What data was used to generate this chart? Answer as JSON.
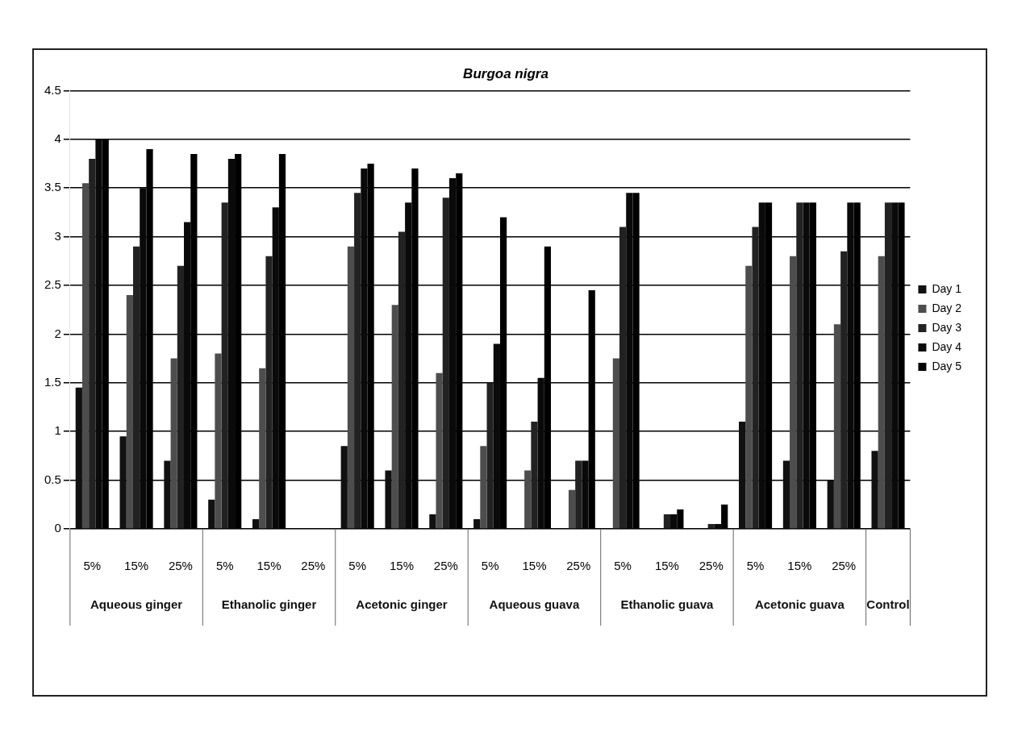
{
  "chart_data": {
    "type": "bar",
    "title": "Burgoa nigra",
    "categories": [
      "5%",
      "15%",
      "25%",
      "5%",
      "15%",
      "25%",
      "5%",
      "15%",
      "25%",
      "5%",
      "15%",
      "25%",
      "5%",
      "15%",
      "25%",
      "5%",
      "15%",
      "25%",
      null
    ],
    "annotations": [
      "Aqueous ginger",
      "Ethanolic ginger",
      "Acetonic ginger",
      "Aqueous guava",
      "Ethanolic guava",
      "Acetonic guava",
      "Control"
    ],
    "series": [
      {
        "name": "Day 1",
        "color": "#111111",
        "values": [
          1.45,
          0.95,
          0.7,
          0.3,
          0.1,
          0,
          0.85,
          0.6,
          0.15,
          0.1,
          0,
          0,
          0,
          0,
          0,
          1.1,
          0.7,
          0.5,
          0.8
        ]
      },
      {
        "name": "Day 2",
        "color": "#4d4d4d",
        "values": [
          3.55,
          2.4,
          1.75,
          1.8,
          1.65,
          0,
          2.9,
          2.3,
          1.6,
          0.85,
          0.6,
          0.4,
          1.75,
          0,
          0,
          2.7,
          2.8,
          2.1,
          2.8
        ]
      },
      {
        "name": "Day 3",
        "color": "#222222",
        "values": [
          3.8,
          2.9,
          2.7,
          3.35,
          2.8,
          0,
          3.45,
          3.05,
          3.4,
          1.5,
          1.1,
          0.7,
          3.1,
          0.15,
          0.05,
          3.1,
          3.35,
          2.85,
          3.35
        ]
      },
      {
        "name": "Day 4",
        "color": "#0a0a0a",
        "values": [
          4,
          3.5,
          3.15,
          3.8,
          3.3,
          0,
          3.7,
          3.35,
          3.6,
          1.9,
          1.55,
          0.7,
          3.45,
          0.15,
          0.05,
          3.35,
          3.35,
          3.35,
          3.35
        ]
      },
      {
        "name": "Day 5",
        "color": "#000000",
        "values": [
          4,
          3.9,
          3.85,
          3.85,
          3.85,
          0,
          3.75,
          3.7,
          3.65,
          3.2,
          2.9,
          2.45,
          3.45,
          0.2,
          0.25,
          3.35,
          3.35,
          3.35,
          3.35
        ]
      }
    ],
    "ylim": [
      0,
      4.5
    ],
    "yticks": [
      0,
      0.5,
      1,
      1.5,
      2,
      2.5,
      3,
      3.5,
      4,
      4.5
    ],
    "grid": "y",
    "legend": "right"
  }
}
